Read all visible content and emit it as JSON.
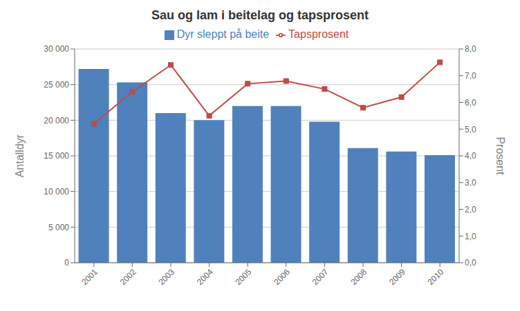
{
  "chart_data": {
    "type": "bar",
    "title": "Sau og lam i beitelag og tapsprosent",
    "categories": [
      "2001",
      "2002",
      "2003",
      "2004",
      "2005",
      "2006",
      "2007",
      "2008",
      "2009",
      "2010"
    ],
    "series": [
      {
        "name": "Dyr sleppt på beite",
        "type": "bar",
        "color": "#4F81BD",
        "values": [
          27200,
          25300,
          21000,
          20000,
          22000,
          22000,
          19800,
          16100,
          15600,
          15100
        ]
      },
      {
        "name": "Tapsprosent",
        "type": "line",
        "color": "#BE4B48",
        "marker": "square",
        "axis": "y2",
        "values": [
          5.2,
          6.4,
          7.4,
          5.5,
          6.7,
          6.8,
          6.5,
          5.8,
          6.2,
          7.5
        ]
      }
    ],
    "ylabel": "Antalldyr",
    "y2label": "Prosent",
    "ylim": [
      0,
      30000
    ],
    "yticks": [
      0,
      {
        "value": 5000,
        "label": "5 000"
      },
      {
        "value": 10000,
        "label": "10 000"
      },
      {
        "value": 15000,
        "label": "15 000"
      },
      {
        "value": 20000,
        "label": "20 000"
      },
      {
        "value": 25000,
        "label": "25 000"
      },
      {
        "value": 30000,
        "label": "30 000"
      }
    ],
    "y2lim": [
      0,
      8.0
    ],
    "y2ticks": [
      {
        "value": 0,
        "label": "0,0"
      },
      {
        "value": 1,
        "label": "1,0"
      },
      {
        "value": 2,
        "label": "2,0"
      },
      {
        "value": 3,
        "label": "3,0"
      },
      {
        "value": 4,
        "label": "4,0"
      },
      {
        "value": 5,
        "label": "5,0"
      },
      {
        "value": 6,
        "label": "6,0"
      },
      {
        "value": 7,
        "label": "7,0"
      },
      {
        "value": 8,
        "label": "8,0"
      }
    ],
    "grid": true,
    "legend": "top"
  }
}
